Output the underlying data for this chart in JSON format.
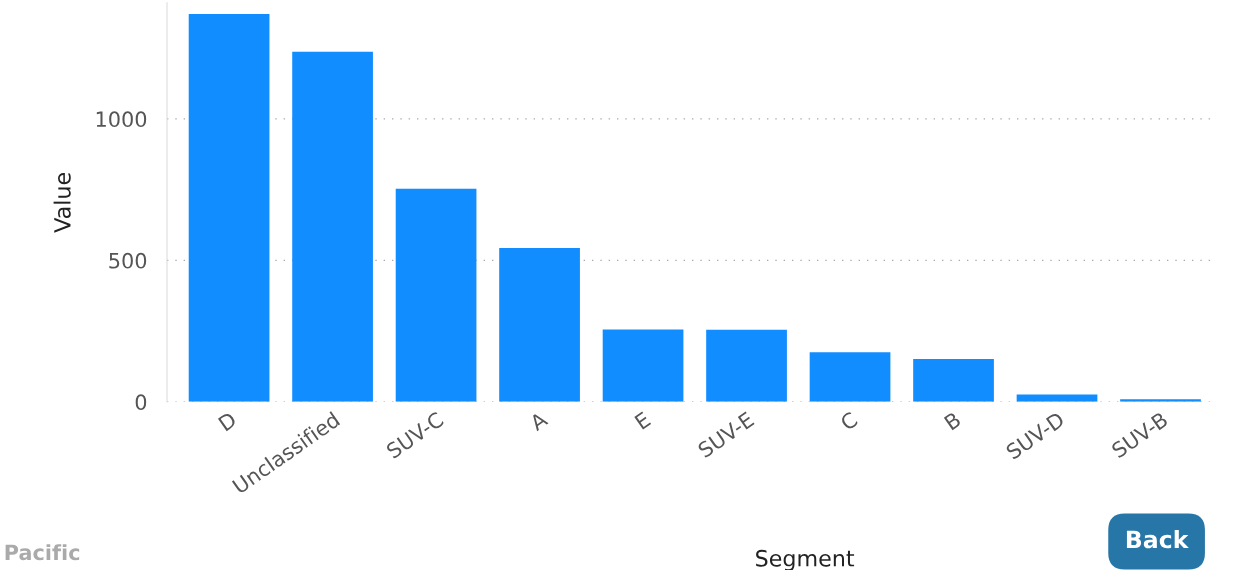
{
  "chart_data": {
    "type": "bar",
    "xlabel": "Segment",
    "ylabel": "Value",
    "categories": [
      "D",
      "Unclassified",
      "SUV-C",
      "A",
      "E",
      "SUV-E",
      "C",
      "B",
      "SUV-D",
      "SUV-B"
    ],
    "values": [
      1371,
      1237,
      753,
      544,
      256,
      255,
      175,
      151,
      26,
      9
    ],
    "color": "#118dff",
    "ylim": [
      0,
      1410
    ],
    "yticks": [
      0,
      500,
      1000
    ],
    "grid": "y",
    "annotations": [
      "Pacific",
      "Back"
    ]
  }
}
